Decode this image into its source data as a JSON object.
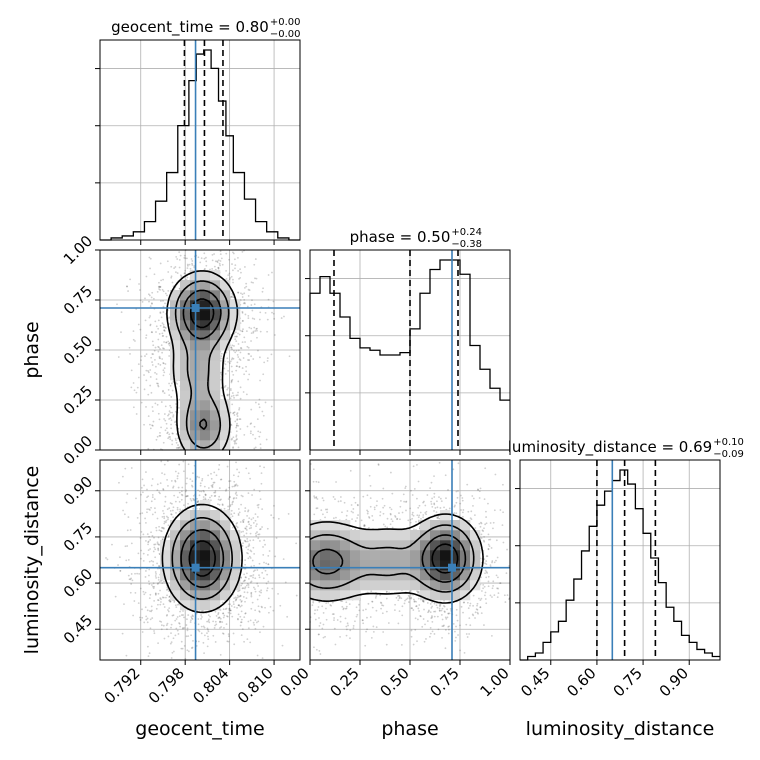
{
  "figure": {
    "background": "#ffffff",
    "truth_color": "#3a7fb8",
    "line_color": "#000000",
    "grid": true
  },
  "chart_data": {
    "type": "corner",
    "parameters": [
      {
        "name": "geocent_time",
        "label": "geocent_time",
        "title": "geocent_time = 0.80",
        "title_upper": "+0.00",
        "title_lower": "−0.00",
        "range": [
          0.7865,
          0.8135
        ],
        "ticks": [
          0.792,
          0.798,
          0.804,
          0.81
        ],
        "tick_labels": [
          "0.792",
          "0.798",
          "0.804",
          "0.810"
        ],
        "truth": 0.7994,
        "quantiles": [
          0.7979,
          0.8006,
          0.8031
        ],
        "histogram": {
          "bin_edges": [
            0.7865,
            0.788,
            0.7895,
            0.791,
            0.7925,
            0.794,
            0.7955,
            0.797,
            0.7985,
            0.7995,
            0.8005,
            0.8015,
            0.8025,
            0.8035,
            0.8045,
            0.806,
            0.8075,
            0.809,
            0.8105,
            0.812,
            0.8135
          ],
          "counts": [
            0,
            1,
            2,
            4,
            9,
            19,
            33,
            56,
            78,
            91,
            93,
            84,
            68,
            51,
            33,
            20,
            9,
            4,
            1,
            0
          ]
        }
      },
      {
        "name": "phase",
        "label": "phase",
        "title": "phase = 0.50",
        "title_upper": "+0.24",
        "title_lower": "−0.38",
        "range": [
          0.0,
          1.0
        ],
        "ticks": [
          0.0,
          0.25,
          0.5,
          0.75,
          1.0
        ],
        "tick_labels": [
          "0.00",
          "0.25",
          "0.50",
          "0.75",
          "1.00"
        ],
        "truth": 0.71,
        "quantiles": [
          0.12,
          0.5,
          0.74
        ],
        "histogram": {
          "bin_edges": [
            0.0,
            0.05,
            0.1,
            0.15,
            0.2,
            0.25,
            0.3,
            0.35,
            0.4,
            0.45,
            0.5,
            0.55,
            0.6,
            0.65,
            0.7,
            0.75,
            0.8,
            0.85,
            0.9,
            0.95,
            1.0
          ],
          "counts": [
            66,
            73,
            66,
            56,
            47,
            43,
            42,
            40,
            40,
            41,
            51,
            66,
            76,
            80,
            80,
            74,
            44,
            34,
            26,
            21
          ]
        }
      },
      {
        "name": "luminosity_distance",
        "label": "luminosity_distance",
        "title": "luminosity_distance = 0.69",
        "title_upper": "+0.10",
        "title_lower": "−0.09",
        "range": [
          0.35,
          1.0
        ],
        "ticks": [
          0.45,
          0.6,
          0.75,
          0.9
        ],
        "tick_labels": [
          "0.45",
          "0.60",
          "0.75",
          "0.90"
        ],
        "truth": 0.65,
        "quantiles": [
          0.6,
          0.69,
          0.79
        ],
        "histogram": {
          "bin_edges": [
            0.35,
            0.375,
            0.4,
            0.425,
            0.45,
            0.475,
            0.5,
            0.525,
            0.55,
            0.575,
            0.6,
            0.625,
            0.65,
            0.675,
            0.7,
            0.725,
            0.75,
            0.775,
            0.8,
            0.825,
            0.85,
            0.875,
            0.9,
            0.925,
            0.95,
            0.975,
            1.0
          ],
          "counts": [
            0,
            1,
            2,
            5,
            8,
            11,
            17,
            23,
            31,
            38,
            44,
            48,
            51,
            54,
            50,
            43,
            36,
            29,
            22,
            15,
            11,
            7,
            5,
            3,
            2,
            1
          ]
        }
      }
    ],
    "pairs": [
      {
        "x": "geocent_time",
        "y": "phase",
        "truth": [
          0.7994,
          0.71
        ],
        "density_components": [
          {
            "mx": 0.8003,
            "my": 0.69,
            "sx": 0.0023,
            "sy": 0.1,
            "w": 1.0
          },
          {
            "mx": 0.8005,
            "my": 0.12,
            "sx": 0.002,
            "sy": 0.1,
            "w": 0.55
          },
          {
            "mx": 0.7997,
            "my": 0.4,
            "sx": 0.0022,
            "sy": 0.12,
            "w": 0.35
          }
        ]
      },
      {
        "x": "geocent_time",
        "y": "luminosity_distance",
        "truth": [
          0.7994,
          0.65
        ],
        "density_components": [
          {
            "mx": 0.8003,
            "my": 0.68,
            "sx": 0.0026,
            "sy": 0.085,
            "w": 1.0
          }
        ]
      },
      {
        "x": "phase",
        "y": "luminosity_distance",
        "truth": [
          0.71,
          0.65
        ],
        "density_components": [
          {
            "mx": 0.68,
            "my": 0.68,
            "sx": 0.09,
            "sy": 0.07,
            "w": 1.0
          },
          {
            "mx": 0.08,
            "my": 0.67,
            "sx": 0.12,
            "sy": 0.07,
            "w": 0.65
          },
          {
            "mx": 0.4,
            "my": 0.67,
            "sx": 0.12,
            "sy": 0.07,
            "w": 0.35
          }
        ]
      }
    ]
  }
}
